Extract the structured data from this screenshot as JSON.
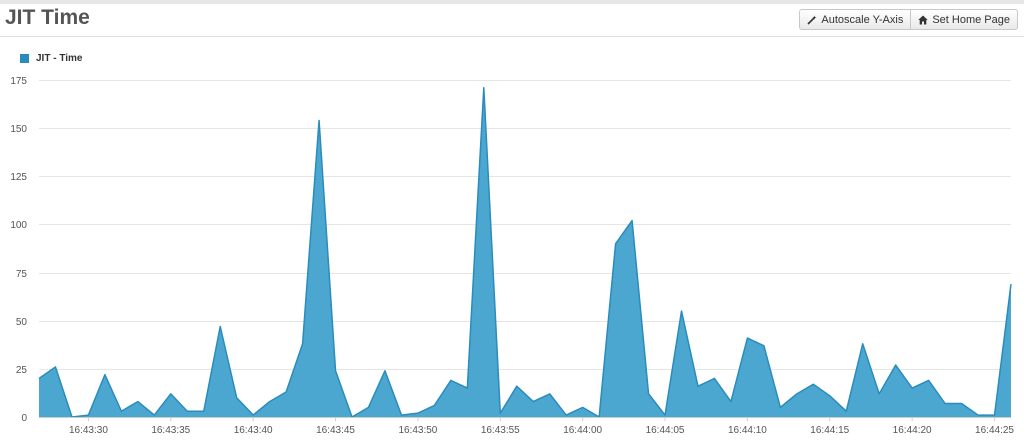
{
  "header": {
    "title": "JIT Time",
    "autoscale_label": "Autoscale Y-Axis",
    "autoscale_icon": "wand-icon",
    "home_label": "Set Home Page",
    "home_icon": "home-icon"
  },
  "colors": {
    "series_fill": "#4ba7d0",
    "series_stroke": "#2a8cbd",
    "legend": "#2a8cbd",
    "grid": "#e6e6e6",
    "axis_text": "#555555"
  },
  "chart_data": {
    "type": "area",
    "title": "JIT Time",
    "xlabel": "",
    "ylabel": "",
    "ylim": [
      0,
      175
    ],
    "y_ticks": [
      0,
      25,
      50,
      75,
      100,
      125,
      150,
      175
    ],
    "x_start": "16:43:27",
    "x_step_seconds": 1,
    "x_ticks": [
      "16:43:30",
      "16:43:35",
      "16:43:40",
      "16:43:45",
      "16:43:50",
      "16:43:55",
      "16:44:00",
      "16:44:05",
      "16:44:10",
      "16:44:15",
      "16:44:20",
      "16:44:25"
    ],
    "legend": "top-left",
    "grid": true,
    "series": [
      {
        "name": "JIT - Time",
        "values": [
          20,
          26,
          0,
          1,
          22,
          3,
          8,
          1,
          12,
          3,
          3,
          47,
          10,
          1,
          8,
          13,
          38,
          154,
          24,
          0,
          5,
          24,
          1,
          2,
          6,
          19,
          15,
          171,
          2,
          16,
          8,
          12,
          1,
          5,
          0,
          90,
          102,
          12,
          1,
          55,
          16,
          20,
          8,
          41,
          37,
          5,
          12,
          17,
          11,
          3,
          38,
          12,
          27,
          15,
          19,
          7,
          7,
          1,
          1,
          69
        ]
      }
    ]
  }
}
